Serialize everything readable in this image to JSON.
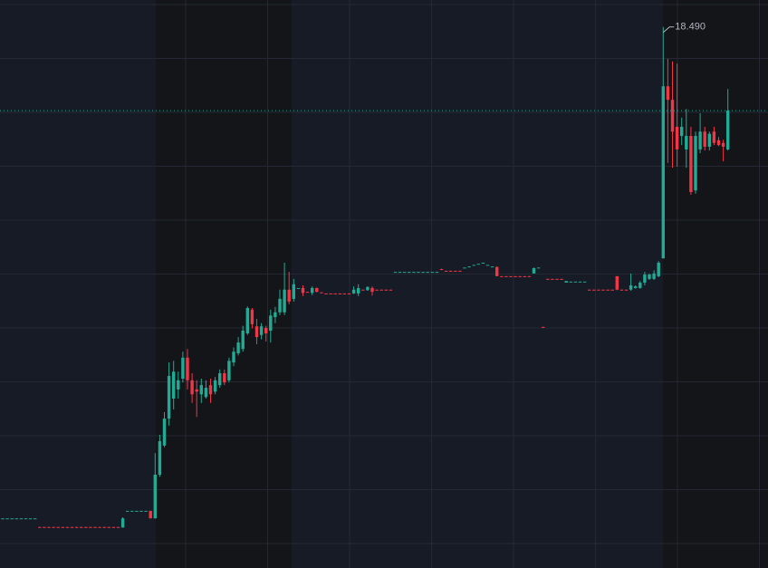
{
  "chart_data": {
    "type": "candlestick",
    "up_color": "#22ab94",
    "down_color": "#f23645",
    "ylim": [
      8.46,
      18.99
    ],
    "annotations": [
      {
        "text": "18.490",
        "value": 18.49
      }
    ],
    "open": [
      9.38,
      9.38,
      9.38,
      9.38,
      9.38,
      9.38,
      9.38,
      9.38,
      9.22,
      9.22,
      9.22,
      9.22,
      9.22,
      9.22,
      9.22,
      9.22,
      9.22,
      9.22,
      9.22,
      9.22,
      9.22,
      9.22,
      9.22,
      9.22,
      9.22,
      9.22,
      9.21,
      9.52,
      9.52,
      9.52,
      9.52,
      9.52,
      9.52,
      9.38,
      10.19,
      10.73,
      11.23,
      11.6,
      11.77,
      11.97,
      12.36,
      11.94,
      11.77,
      11.68,
      11.63,
      11.85,
      11.73,
      11.85,
      12.07,
      11.94,
      12.27,
      12.44,
      12.52,
      12.81,
      13.25,
      12.94,
      12.78,
      12.91,
      12.86,
      13.11,
      13.2,
      13.2,
      13.62,
      13.45,
      13.65,
      13.65,
      13.58,
      13.56,
      13.65,
      13.57,
      13.55,
      13.55,
      13.55,
      13.55,
      13.55,
      13.55,
      13.55,
      13.55,
      13.62,
      13.61,
      13.65,
      13.62,
      13.62,
      13.62,
      13.62,
      13.95,
      13.95,
      13.95,
      13.95,
      13.95,
      13.95,
      13.95,
      13.95,
      13.95,
      13.95,
      14.0,
      13.97,
      13.97,
      13.97,
      13.97,
      14.03,
      14.05,
      14.08,
      14.1,
      14.12,
      14.08,
      14.05,
      14.04,
      13.87,
      13.87,
      13.87,
      13.87,
      13.87,
      13.87,
      13.87,
      13.92,
      14.03,
      12.93,
      13.82,
      13.82,
      13.82,
      13.82,
      13.75,
      13.77,
      13.77,
      13.77,
      13.77,
      13.62,
      13.62,
      13.62,
      13.62,
      13.62,
      13.62,
      13.87,
      13.62,
      13.62,
      13.62,
      13.65,
      13.65,
      13.75,
      13.82,
      13.82,
      13.87,
      14.2,
      17.39,
      17.14,
      16.64,
      16.47,
      16.22,
      16.47,
      15.46,
      16.22,
      16.55,
      16.27,
      16.55,
      16.39,
      16.34,
      16.22
    ],
    "high": [
      9.38,
      9.38,
      9.38,
      9.38,
      9.38,
      9.38,
      9.38,
      9.38,
      9.22,
      9.22,
      9.22,
      9.22,
      9.22,
      9.22,
      9.22,
      9.22,
      9.22,
      9.22,
      9.22,
      9.22,
      9.22,
      9.22,
      9.22,
      9.22,
      9.22,
      9.22,
      9.4,
      9.52,
      9.52,
      9.52,
      9.52,
      9.52,
      9.52,
      10.59,
      10.93,
      11.35,
      12.27,
      12.3,
      12.1,
      12.47,
      12.52,
      12.07,
      11.94,
      11.97,
      11.94,
      11.97,
      12.0,
      12.14,
      12.14,
      12.36,
      12.55,
      12.74,
      12.95,
      13.31,
      13.28,
      13.08,
      13.0,
      12.95,
      13.25,
      13.3,
      13.62,
      14.12,
      13.95,
      13.82,
      13.65,
      13.7,
      13.58,
      13.68,
      13.66,
      13.57,
      13.55,
      13.55,
      13.55,
      13.55,
      13.55,
      13.55,
      13.68,
      13.72,
      13.62,
      13.68,
      13.68,
      13.62,
      13.62,
      13.62,
      13.62,
      13.95,
      13.95,
      13.95,
      13.95,
      13.95,
      13.95,
      13.95,
      13.95,
      13.95,
      13.95,
      14.01,
      13.97,
      13.97,
      13.97,
      13.97,
      14.03,
      14.05,
      14.08,
      14.1,
      14.12,
      14.08,
      14.05,
      14.05,
      13.87,
      13.87,
      13.87,
      13.87,
      13.87,
      13.87,
      13.87,
      14.03,
      14.03,
      12.93,
      13.82,
      13.82,
      13.82,
      13.82,
      13.78,
      13.77,
      13.77,
      13.77,
      13.77,
      13.62,
      13.62,
      13.62,
      13.62,
      13.62,
      13.62,
      13.87,
      13.62,
      13.62,
      13.92,
      13.7,
      13.78,
      13.95,
      13.92,
      13.98,
      14.15,
      18.49,
      17.9,
      17.85,
      17.81,
      16.81,
      16.97,
      16.64,
      16.55,
      16.89,
      16.64,
      16.55,
      16.64,
      16.45,
      16.4,
      17.34
    ],
    "low": [
      9.38,
      9.38,
      9.38,
      9.38,
      9.38,
      9.38,
      9.38,
      9.38,
      9.21,
      9.21,
      9.21,
      9.21,
      9.21,
      9.21,
      9.21,
      9.21,
      9.21,
      9.21,
      9.21,
      9.21,
      9.21,
      9.21,
      9.21,
      9.21,
      9.21,
      9.21,
      9.21,
      9.52,
      9.52,
      9.52,
      9.52,
      9.52,
      9.38,
      9.38,
      10.15,
      10.7,
      11.1,
      11.4,
      11.6,
      11.9,
      11.77,
      11.52,
      11.26,
      11.52,
      11.6,
      11.52,
      11.68,
      11.8,
      11.85,
      11.9,
      12.2,
      12.4,
      12.47,
      12.78,
      12.9,
      12.61,
      12.7,
      12.66,
      12.64,
      13.0,
      13.15,
      13.15,
      13.35,
      13.4,
      13.65,
      13.5,
      13.57,
      13.52,
      13.57,
      13.56,
      13.54,
      13.54,
      13.54,
      13.54,
      13.54,
      13.54,
      13.54,
      13.5,
      13.61,
      13.6,
      13.51,
      13.61,
      13.61,
      13.61,
      13.61,
      13.95,
      13.95,
      13.95,
      13.95,
      13.95,
      13.95,
      13.95,
      13.95,
      13.95,
      13.95,
      13.99,
      13.96,
      13.96,
      13.96,
      13.96,
      14.03,
      14.05,
      14.08,
      14.1,
      14.12,
      14.08,
      14.05,
      13.87,
      13.86,
      13.86,
      13.86,
      13.86,
      13.86,
      13.86,
      13.86,
      13.92,
      14.03,
      12.92,
      13.81,
      13.81,
      13.81,
      13.81,
      13.75,
      13.77,
      13.77,
      13.77,
      13.77,
      13.61,
      13.61,
      13.61,
      13.61,
      13.61,
      13.61,
      13.61,
      13.61,
      13.61,
      13.6,
      13.64,
      13.64,
      13.7,
      13.8,
      13.8,
      13.85,
      14.2,
      15.97,
      15.88,
      15.9,
      16.3,
      15.88,
      15.38,
      15.4,
      16.15,
      16.2,
      16.2,
      16.3,
      16.28,
      16.0,
      16.2
    ],
    "close": [
      9.38,
      9.38,
      9.38,
      9.38,
      9.38,
      9.38,
      9.38,
      9.38,
      9.21,
      9.21,
      9.21,
      9.21,
      9.21,
      9.21,
      9.21,
      9.21,
      9.21,
      9.21,
      9.21,
      9.21,
      9.21,
      9.21,
      9.21,
      9.21,
      9.21,
      9.21,
      9.38,
      9.52,
      9.52,
      9.52,
      9.52,
      9.52,
      9.38,
      10.19,
      10.81,
      11.23,
      12.02,
      12.1,
      11.94,
      12.36,
      11.94,
      11.68,
      11.73,
      11.85,
      11.8,
      11.68,
      11.94,
      12.07,
      11.9,
      12.3,
      12.47,
      12.64,
      12.86,
      13.28,
      12.98,
      12.74,
      12.94,
      12.81,
      13.14,
      13.2,
      13.45,
      13.62,
      13.4,
      13.72,
      13.65,
      13.56,
      13.57,
      13.65,
      13.58,
      13.56,
      13.54,
      13.54,
      13.54,
      13.54,
      13.54,
      13.54,
      13.62,
      13.65,
      13.61,
      13.67,
      13.58,
      13.61,
      13.61,
      13.61,
      13.61,
      13.95,
      13.95,
      13.95,
      13.95,
      13.95,
      13.95,
      13.95,
      13.95,
      13.95,
      13.95,
      13.99,
      13.96,
      13.96,
      13.96,
      13.96,
      14.03,
      14.05,
      14.08,
      14.1,
      14.12,
      14.08,
      14.05,
      13.87,
      13.86,
      13.86,
      13.86,
      13.86,
      13.86,
      13.86,
      13.86,
      14.02,
      14.03,
      12.92,
      13.81,
      13.81,
      13.81,
      13.81,
      13.78,
      13.77,
      13.77,
      13.77,
      13.77,
      13.61,
      13.61,
      13.61,
      13.61,
      13.61,
      13.61,
      13.62,
      13.61,
      13.61,
      13.7,
      13.68,
      13.75,
      13.9,
      13.9,
      13.92,
      14.12,
      17.39,
      17.14,
      16.55,
      16.22,
      16.64,
      16.47,
      15.43,
      16.47,
      16.55,
      16.27,
      16.51,
      16.34,
      16.3,
      16.27,
      16.94
    ]
  }
}
